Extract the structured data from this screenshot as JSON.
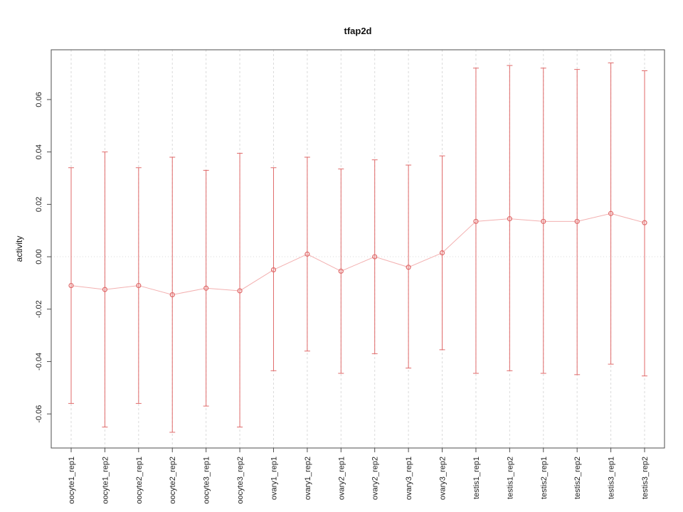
{
  "figure": {
    "title": "tfap2d"
  },
  "chart_data": {
    "type": "line",
    "title": "tfap2d",
    "xlabel": "",
    "ylabel": "activity",
    "ylim": [
      -0.073,
      0.079
    ],
    "yticks": [
      -0.06,
      -0.04,
      -0.02,
      0.0,
      0.02,
      0.04,
      0.06
    ],
    "grid": true,
    "legend": "none",
    "categories": [
      "oocyte1_rep1",
      "oocyte1_rep2",
      "oocyte2_rep1",
      "oocyte2_rep2",
      "oocyte3_rep1",
      "oocyte3_rep2",
      "ovary1_rep1",
      "ovary1_rep2",
      "ovary2_rep1",
      "ovary2_rep2",
      "ovary3_rep1",
      "ovary3_rep2",
      "testis1_rep1",
      "testis1_rep2",
      "testis2_rep1",
      "testis2_rep2",
      "testis3_rep1",
      "testis3_rep2"
    ],
    "series": [
      {
        "name": "activity",
        "values": [
          -0.011,
          -0.0125,
          -0.011,
          -0.0145,
          -0.012,
          -0.013,
          -0.005,
          0.001,
          -0.0055,
          0.0,
          -0.004,
          0.0015,
          0.0135,
          0.0145,
          0.0135,
          0.0135,
          0.0165,
          0.013
        ]
      }
    ],
    "error_bars": {
      "upper": [
        0.034,
        0.04,
        0.034,
        0.038,
        0.033,
        0.0395,
        0.034,
        0.038,
        0.0335,
        0.037,
        0.035,
        0.0385,
        0.072,
        0.073,
        0.072,
        0.0715,
        0.074,
        0.071
      ],
      "lower": [
        -0.056,
        -0.065,
        -0.056,
        -0.067,
        -0.057,
        -0.065,
        -0.0435,
        -0.036,
        -0.0445,
        -0.037,
        -0.0425,
        -0.0355,
        -0.0445,
        -0.0435,
        -0.0445,
        -0.045,
        -0.041,
        -0.0455
      ]
    },
    "colors": {
      "point": "#e06a6a",
      "error_bar": "#e06a6a",
      "line": "#f3b0b0",
      "grid": "#dadada",
      "zero_line": "#d8d8d8",
      "axis": "#4d4d4d",
      "text": "#222222"
    }
  }
}
